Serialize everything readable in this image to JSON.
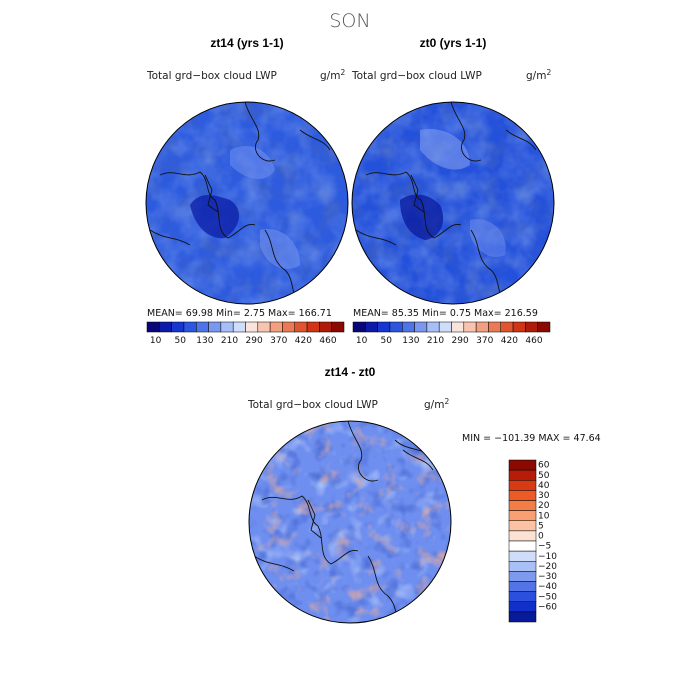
{
  "figure": {
    "title": "SON"
  },
  "chart_data": [
    {
      "type": "heatmap",
      "title": "zt14 (yrs 1-1)",
      "variable": "Total grd−box cloud LWP",
      "units": "g/m",
      "units_exp": "2",
      "projection": "north polar stereographic",
      "stats": {
        "mean": "69.98",
        "min": "2.75",
        "max": "166.71"
      },
      "stats_text": "MEAN=  69.98   Min=     2.75   Max=  166.71",
      "colorbar": {
        "ticks": [
          "10",
          "50",
          "130",
          "210",
          "290",
          "370",
          "420",
          "460"
        ],
        "colors": [
          "#08077a",
          "#0b1aa8",
          "#1536d0",
          "#2c55e0",
          "#4f74e8",
          "#7a98f0",
          "#a6bff6",
          "#cfdcfa",
          "#f8e4da",
          "#f7c4b0",
          "#f2a080",
          "#ea7a55",
          "#df5530",
          "#cf3415",
          "#b01a08",
          "#8a0a02"
        ]
      },
      "dominant_color": "#2d5bdf"
    },
    {
      "type": "heatmap",
      "title": "zt0 (yrs 1-1)",
      "variable": "Total grd−box cloud LWP",
      "units": "g/m",
      "units_exp": "2",
      "projection": "north polar stereographic",
      "stats": {
        "mean": "85.35",
        "min": "0.75",
        "max": "216.59"
      },
      "stats_text": "MEAN=  85.35   Min=     0.75   Max=  216.59",
      "colorbar": {
        "ticks": [
          "10",
          "50",
          "130",
          "210",
          "290",
          "370",
          "420",
          "460"
        ],
        "colors": [
          "#08077a",
          "#0b1aa8",
          "#1536d0",
          "#2c55e0",
          "#4f74e8",
          "#7a98f0",
          "#a6bff6",
          "#cfdcfa",
          "#f8e4da",
          "#f7c4b0",
          "#f2a080",
          "#ea7a55",
          "#df5530",
          "#cf3415",
          "#b01a08",
          "#8a0a02"
        ]
      },
      "dominant_color": "#2451db"
    },
    {
      "type": "heatmap",
      "title": "zt14 - zt0",
      "variable": "Total grd−box cloud LWP",
      "units": "g/m",
      "units_exp": "2",
      "projection": "north polar stereographic",
      "stats": {
        "min": "−101.39",
        "max": "47.64"
      },
      "stats_text": "MIN = −101.39  MAX =   47.64",
      "colorbar": {
        "orientation": "vertical",
        "ticks": [
          "60",
          "50",
          "40",
          "30",
          "20",
          "10",
          "5",
          "0",
          "−5",
          "−10",
          "−20",
          "−30",
          "−40",
          "−50",
          "−60"
        ],
        "colors": [
          "#8a0a02",
          "#b81c08",
          "#d83a14",
          "#ee5a25",
          "#f47c45",
          "#f8a072",
          "#fbc3a3",
          "#fbe2d5",
          "#ffffff",
          "#cfdcfa",
          "#a8c0f5",
          "#7d9aee",
          "#5274e6",
          "#2c4fdd",
          "#1230c8",
          "#061a9a"
        ]
      },
      "dominant_color": "#6f8ff0"
    }
  ]
}
